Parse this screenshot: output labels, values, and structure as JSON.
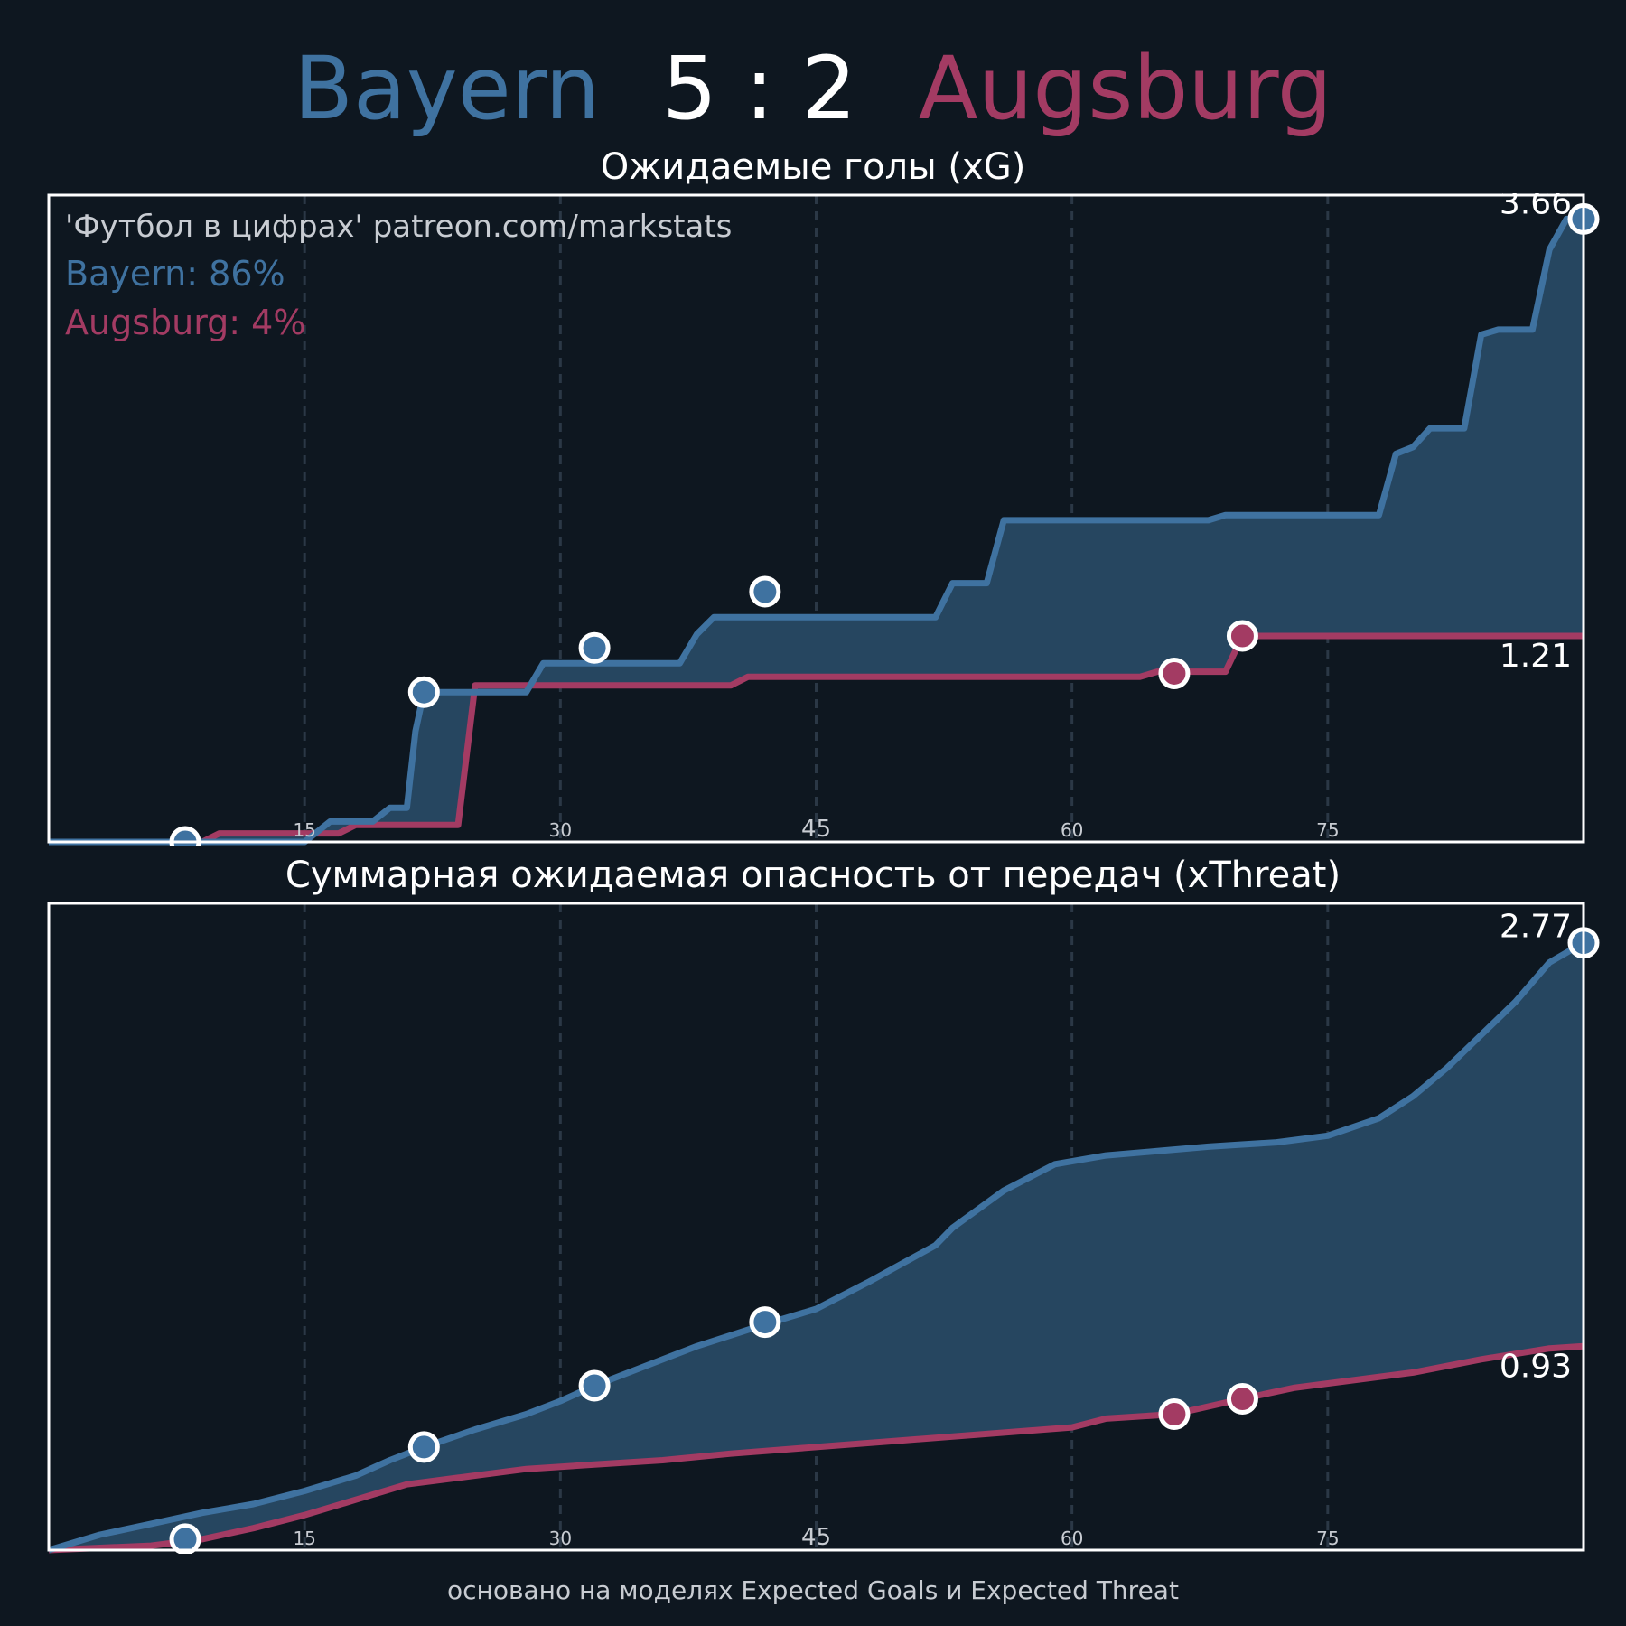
{
  "header": {
    "home_team": "Bayern",
    "score_home": "5",
    "score_separator": ":",
    "score_away": "2",
    "away_team": "Augsburg"
  },
  "footer": {
    "text": "основано на моделях Expected Goals и Expected Threat"
  },
  "colors": {
    "background": "#0e1720",
    "home": "#3f72a0",
    "away": "#a33b63",
    "fill": "#264660",
    "frame": "#ffffff"
  },
  "chart_data": [
    {
      "type": "area",
      "title": "Ожидаемые голы (xG)",
      "annotations": [
        "'Футбол в цифрах' patreon.com/markstats",
        "Bayern: 86%",
        "Augsburg: 4%"
      ],
      "x_ticks": [
        "15",
        "30",
        "45",
        "60",
        "75"
      ],
      "xlim": [
        0,
        90
      ],
      "ylim": [
        0,
        3.8
      ],
      "grid": "vertical dashed",
      "end_labels": {
        "home": "3.66",
        "away": "1.21"
      },
      "series": [
        {
          "name": "Bayern",
          "step_points": [
            [
              0,
              0
            ],
            [
              8,
              0
            ],
            [
              9,
              0
            ],
            [
              15,
              0
            ],
            [
              16.5,
              0.12
            ],
            [
              19,
              0.12
            ],
            [
              20,
              0.2
            ],
            [
              21,
              0.2
            ],
            [
              21.5,
              0.65
            ],
            [
              22,
              0.88
            ],
            [
              28,
              0.88
            ],
            [
              29,
              1.05
            ],
            [
              37,
              1.05
            ],
            [
              38,
              1.22
            ],
            [
              39,
              1.32
            ],
            [
              52,
              1.32
            ],
            [
              53,
              1.52
            ],
            [
              55,
              1.52
            ],
            [
              56,
              1.89
            ],
            [
              68,
              1.89
            ],
            [
              69,
              1.92
            ],
            [
              78,
              1.92
            ],
            [
              79,
              2.28
            ],
            [
              80,
              2.32
            ],
            [
              81,
              2.43
            ],
            [
              83,
              2.43
            ],
            [
              84,
              2.98
            ],
            [
              85,
              3.01
            ],
            [
              87,
              3.01
            ],
            [
              88,
              3.48
            ],
            [
              89,
              3.66
            ],
            [
              90,
              3.66
            ]
          ],
          "goals": [
            [
              8,
              0
            ],
            [
              22,
              0.88
            ],
            [
              32,
              1.14
            ],
            [
              42,
              1.47
            ]
          ]
        },
        {
          "name": "Augsburg",
          "step_points": [
            [
              0,
              0
            ],
            [
              9,
              0
            ],
            [
              10,
              0.05
            ],
            [
              17,
              0.05
            ],
            [
              18,
              0.1
            ],
            [
              24,
              0.1
            ],
            [
              25,
              0.92
            ],
            [
              40,
              0.92
            ],
            [
              41,
              0.97
            ],
            [
              64,
              0.97
            ],
            [
              65,
              1.0
            ],
            [
              69,
              1.0
            ],
            [
              70,
              1.21
            ],
            [
              90,
              1.21
            ]
          ],
          "goals": [
            [
              66,
              0.99
            ],
            [
              70,
              1.21
            ]
          ]
        }
      ]
    },
    {
      "type": "area",
      "title": "Суммарная ожидаемая опасность от передач (xThreat)",
      "x_ticks": [
        "15",
        "30",
        "45",
        "60",
        "75"
      ],
      "xlim": [
        0,
        90
      ],
      "ylim": [
        0,
        2.95
      ],
      "grid": "vertical dashed",
      "end_labels": {
        "home": "2.77",
        "away": "0.93"
      },
      "series": [
        {
          "name": "Bayern",
          "points": [
            [
              0,
              0
            ],
            [
              3,
              0.07
            ],
            [
              6,
              0.12
            ],
            [
              9,
              0.17
            ],
            [
              12,
              0.21
            ],
            [
              15,
              0.27
            ],
            [
              18,
              0.34
            ],
            [
              20,
              0.41
            ],
            [
              22,
              0.47
            ],
            [
              25,
              0.55
            ],
            [
              28,
              0.62
            ],
            [
              30,
              0.68
            ],
            [
              32,
              0.75
            ],
            [
              35,
              0.84
            ],
            [
              38,
              0.93
            ],
            [
              42,
              1.03
            ],
            [
              45,
              1.1
            ],
            [
              48,
              1.22
            ],
            [
              52,
              1.39
            ],
            [
              53,
              1.47
            ],
            [
              56,
              1.64
            ],
            [
              59,
              1.76
            ],
            [
              62,
              1.8
            ],
            [
              65,
              1.82
            ],
            [
              68,
              1.84
            ],
            [
              72,
              1.86
            ],
            [
              75,
              1.89
            ],
            [
              78,
              1.97
            ],
            [
              80,
              2.07
            ],
            [
              82,
              2.2
            ],
            [
              84,
              2.35
            ],
            [
              86,
              2.5
            ],
            [
              88,
              2.68
            ],
            [
              90,
              2.77
            ]
          ],
          "goals": [
            [
              8,
              0.05
            ],
            [
              22,
              0.47
            ],
            [
              32,
              0.75
            ],
            [
              42,
              1.04
            ]
          ]
        },
        {
          "name": "Augsburg",
          "points": [
            [
              0,
              0
            ],
            [
              6,
              0.02
            ],
            [
              9,
              0.05
            ],
            [
              12,
              0.1
            ],
            [
              15,
              0.16
            ],
            [
              18,
              0.23
            ],
            [
              21,
              0.3
            ],
            [
              24,
              0.33
            ],
            [
              28,
              0.37
            ],
            [
              32,
              0.39
            ],
            [
              36,
              0.41
            ],
            [
              40,
              0.44
            ],
            [
              45,
              0.47
            ],
            [
              50,
              0.5
            ],
            [
              55,
              0.53
            ],
            [
              60,
              0.56
            ],
            [
              62,
              0.6
            ],
            [
              66,
              0.62
            ],
            [
              70,
              0.69
            ],
            [
              73,
              0.74
            ],
            [
              76,
              0.77
            ],
            [
              80,
              0.81
            ],
            [
              84,
              0.87
            ],
            [
              88,
              0.92
            ],
            [
              90,
              0.93
            ]
          ],
          "goals": [
            [
              66,
              0.62
            ],
            [
              70,
              0.69
            ]
          ]
        }
      ]
    }
  ]
}
